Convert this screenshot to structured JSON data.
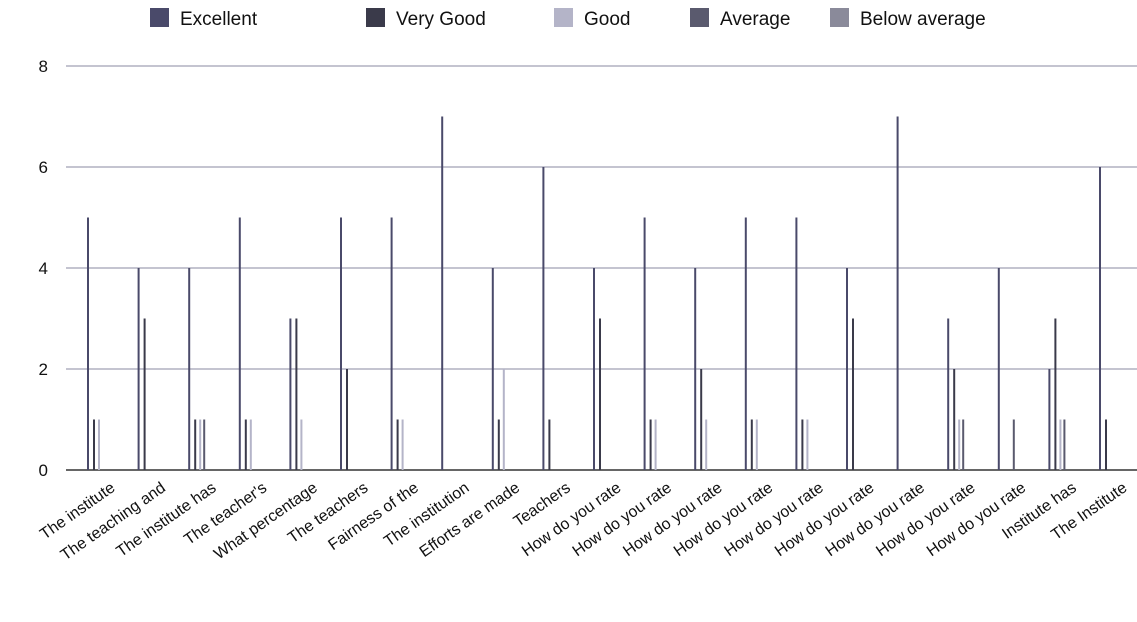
{
  "chart_data": {
    "type": "bar",
    "title": "",
    "xlabel": "",
    "ylabel": "",
    "ylim": [
      0,
      8
    ],
    "yticks": [
      "0",
      "2",
      "4",
      "6",
      "8"
    ],
    "grid": true,
    "legend_position": "top",
    "categories": [
      "The institute",
      "The teaching and",
      "The institute has",
      "The teacher's",
      "What percentage",
      "The teachers",
      "Fairness of the",
      "The institution",
      "Efforts are made",
      "Teachers",
      "How do you rate",
      "How do you rate",
      "How do you rate",
      "How do you rate",
      "How do you rate",
      "How do you rate",
      "How do you rate",
      "How do you rate",
      "How do you rate",
      "Institute has",
      "The Institute"
    ],
    "series": [
      {
        "name": "Excellent",
        "color": "#4a4a6a",
        "values": [
          5,
          4,
          4,
          5,
          3,
          5,
          5,
          7,
          4,
          6,
          4,
          5,
          4,
          5,
          5,
          4,
          7,
          3,
          4,
          2,
          6
        ]
      },
      {
        "name": "Very Good",
        "color": "#3a3a4a",
        "values": [
          1,
          3,
          1,
          1,
          3,
          2,
          1,
          0,
          1,
          1,
          3,
          1,
          2,
          1,
          1,
          3,
          0,
          2,
          0,
          3,
          1
        ]
      },
      {
        "name": "Good",
        "color": "#b4b4c8",
        "values": [
          1,
          0,
          1,
          1,
          1,
          0,
          1,
          0,
          2,
          0,
          0,
          1,
          1,
          1,
          1,
          0,
          0,
          1,
          0,
          1,
          0
        ]
      },
      {
        "name": "Average",
        "color": "#5a5a6e",
        "values": [
          0,
          0,
          1,
          0,
          0,
          0,
          0,
          0,
          0,
          0,
          0,
          0,
          0,
          0,
          0,
          0,
          0,
          1,
          1,
          1,
          0
        ]
      },
      {
        "name": "Below average",
        "color": "#8a8a9a",
        "values": [
          0,
          0,
          0,
          0,
          0,
          0,
          0,
          0,
          0,
          0,
          0,
          0,
          0,
          0,
          0,
          0,
          0,
          0,
          0,
          0,
          0
        ]
      }
    ]
  }
}
